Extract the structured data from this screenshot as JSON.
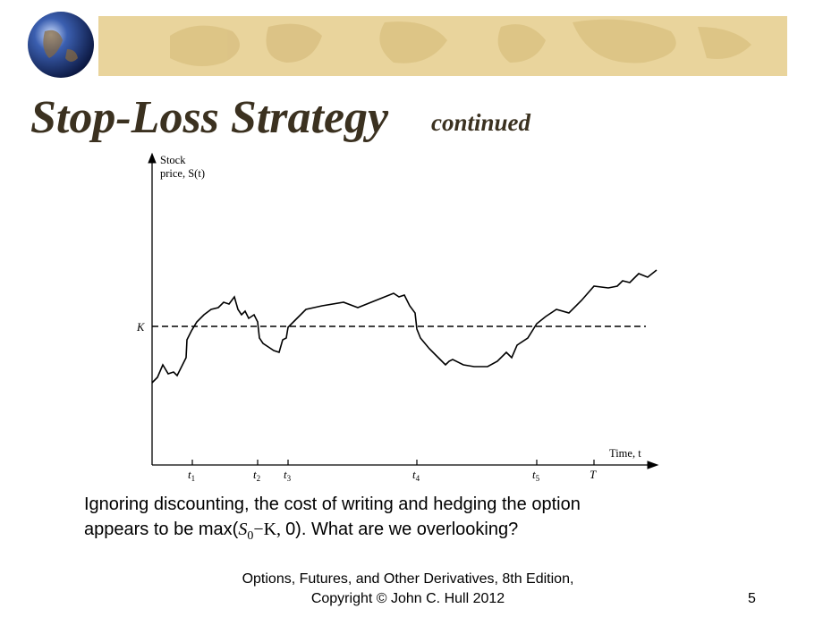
{
  "header": {
    "title": "Stop-Loss Strategy",
    "subtitle": "continued"
  },
  "figure": {
    "y_axis_label": [
      "Stock",
      "price, S(t)"
    ],
    "x_axis_label": "Time, t",
    "strike_label": "K",
    "time_marks": [
      {
        "base": "t",
        "sub": "1"
      },
      {
        "base": "t",
        "sub": "2"
      },
      {
        "base": "t",
        "sub": "3"
      },
      {
        "base": "t",
        "sub": "4"
      },
      {
        "base": "t",
        "sub": "5"
      },
      {
        "base": "T",
        "sub": ""
      }
    ]
  },
  "body": {
    "line1": "Ignoring discounting, the cost of writing and hedging the option",
    "line2_start": "appears to be max(",
    "line2_var": "S",
    "line2_sub": "0",
    "line2_mid": "−K, ",
    "line2_end": "0). What are we overlooking?"
  },
  "footer": {
    "line1": "Options, Futures, and Other Derivatives,  8th Edition,",
    "line2": "Copyright © John  C. Hull 2012",
    "page": "5"
  }
}
